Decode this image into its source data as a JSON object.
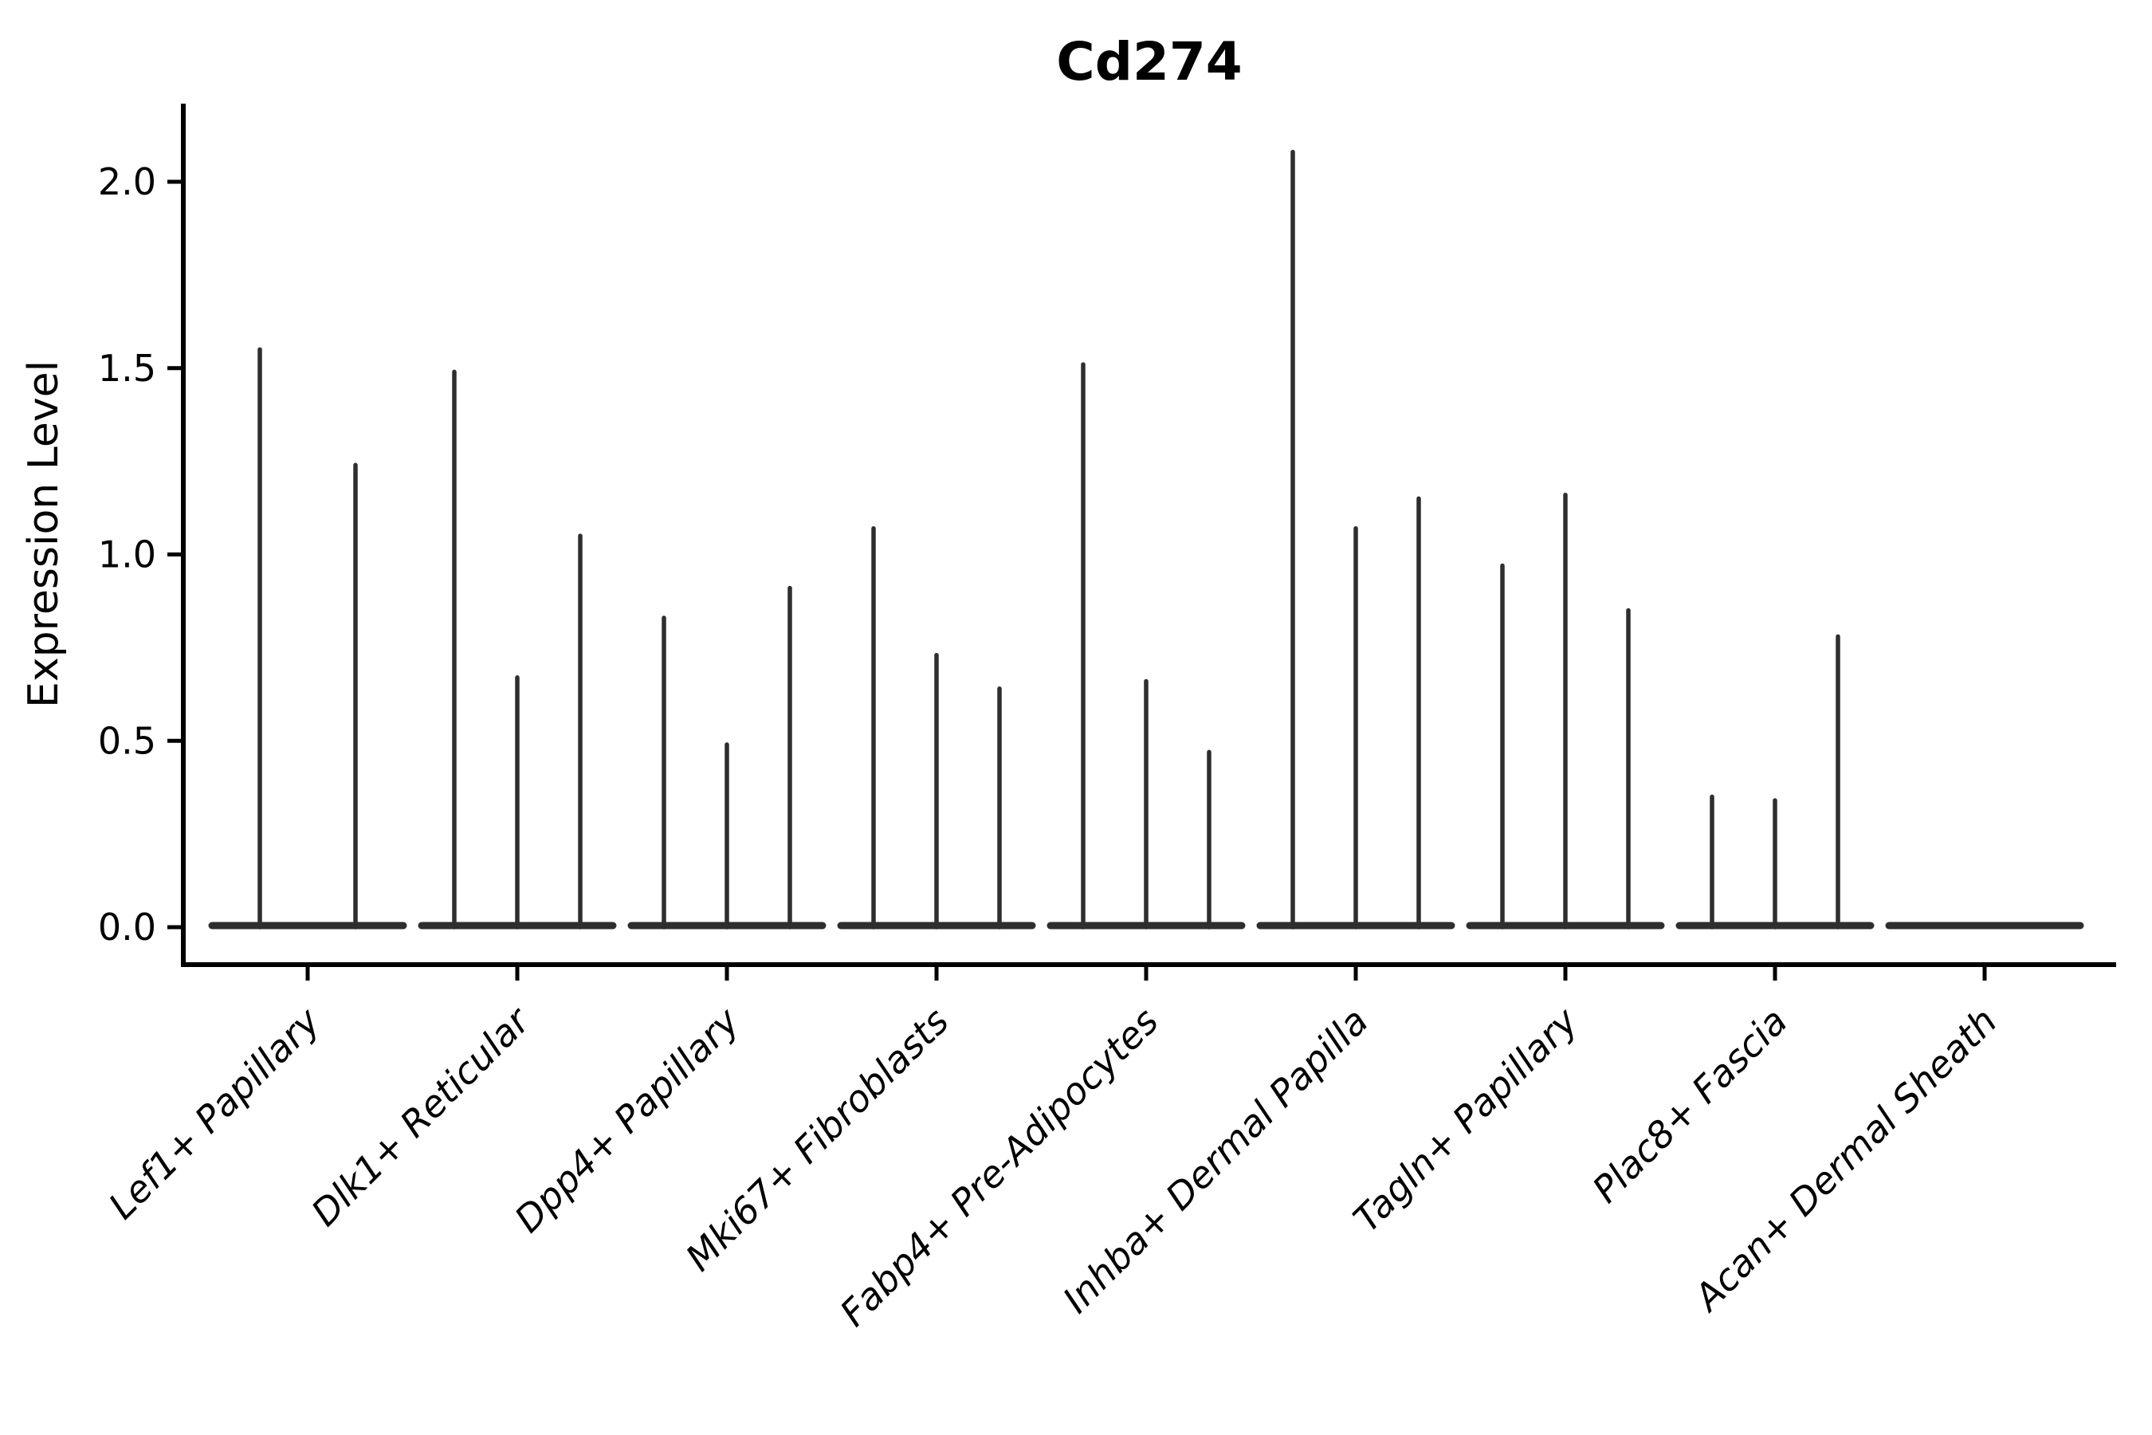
{
  "figure": {
    "title": "Cd274",
    "ylabel": "Expression Level"
  },
  "chart_data": {
    "type": "violin",
    "title": "Cd274",
    "xlabel": "",
    "ylabel": "Expression Level",
    "ylim": [
      -0.1,
      2.21
    ],
    "yticks": [
      0.0,
      0.5,
      1.0,
      1.5,
      2.0
    ],
    "ytick_labels": [
      "0.0",
      "0.5",
      "1.0",
      "1.5",
      "2.0"
    ],
    "grid": false,
    "legend_position": "none",
    "x_tick_label_style": "italic, rotated 45deg, right-anchored",
    "description": "Single-cell expression violin plot; each category shows narrow spike violins (peak = max expression) rising from a flat base at 0.",
    "categories": [
      "Lef1+ Papillary",
      "Dlk1+ Reticular",
      "Dpp4+ Papillary",
      "Mki67+ Fibroblasts",
      "Fabp4+ Pre-Adipocytes",
      "Inhba+ Dermal Papilla",
      "Tagln+ Papillary",
      "Plac8+ Fascia",
      "Acan+ Dermal Sheath"
    ],
    "violins": [
      {
        "category": "Lef1+ Papillary",
        "spikes": [
          1.55,
          1.24
        ]
      },
      {
        "category": "Dlk1+ Reticular",
        "spikes": [
          1.49,
          0.67,
          1.05
        ]
      },
      {
        "category": "Dpp4+ Papillary",
        "spikes": [
          0.83,
          0.49,
          0.91
        ]
      },
      {
        "category": "Mki67+ Fibroblasts",
        "spikes": [
          1.07,
          0.73,
          0.64
        ]
      },
      {
        "category": "Fabp4+ Pre-Adipocytes",
        "spikes": [
          1.51,
          0.66,
          0.47
        ]
      },
      {
        "category": "Inhba+ Dermal Papilla",
        "spikes": [
          2.08,
          1.07,
          1.15
        ]
      },
      {
        "category": "Tagln+ Papillary",
        "spikes": [
          0.97,
          1.16,
          0.85
        ]
      },
      {
        "category": "Plac8+ Fascia",
        "spikes": [
          0.35,
          0.34,
          0.78
        ]
      },
      {
        "category": "Acan+ Dermal Sheath",
        "spikes": []
      }
    ],
    "colors": {
      "violin": "#2e2e2e",
      "axis": "#000000",
      "text": "#000000",
      "background": "#ffffff"
    }
  }
}
